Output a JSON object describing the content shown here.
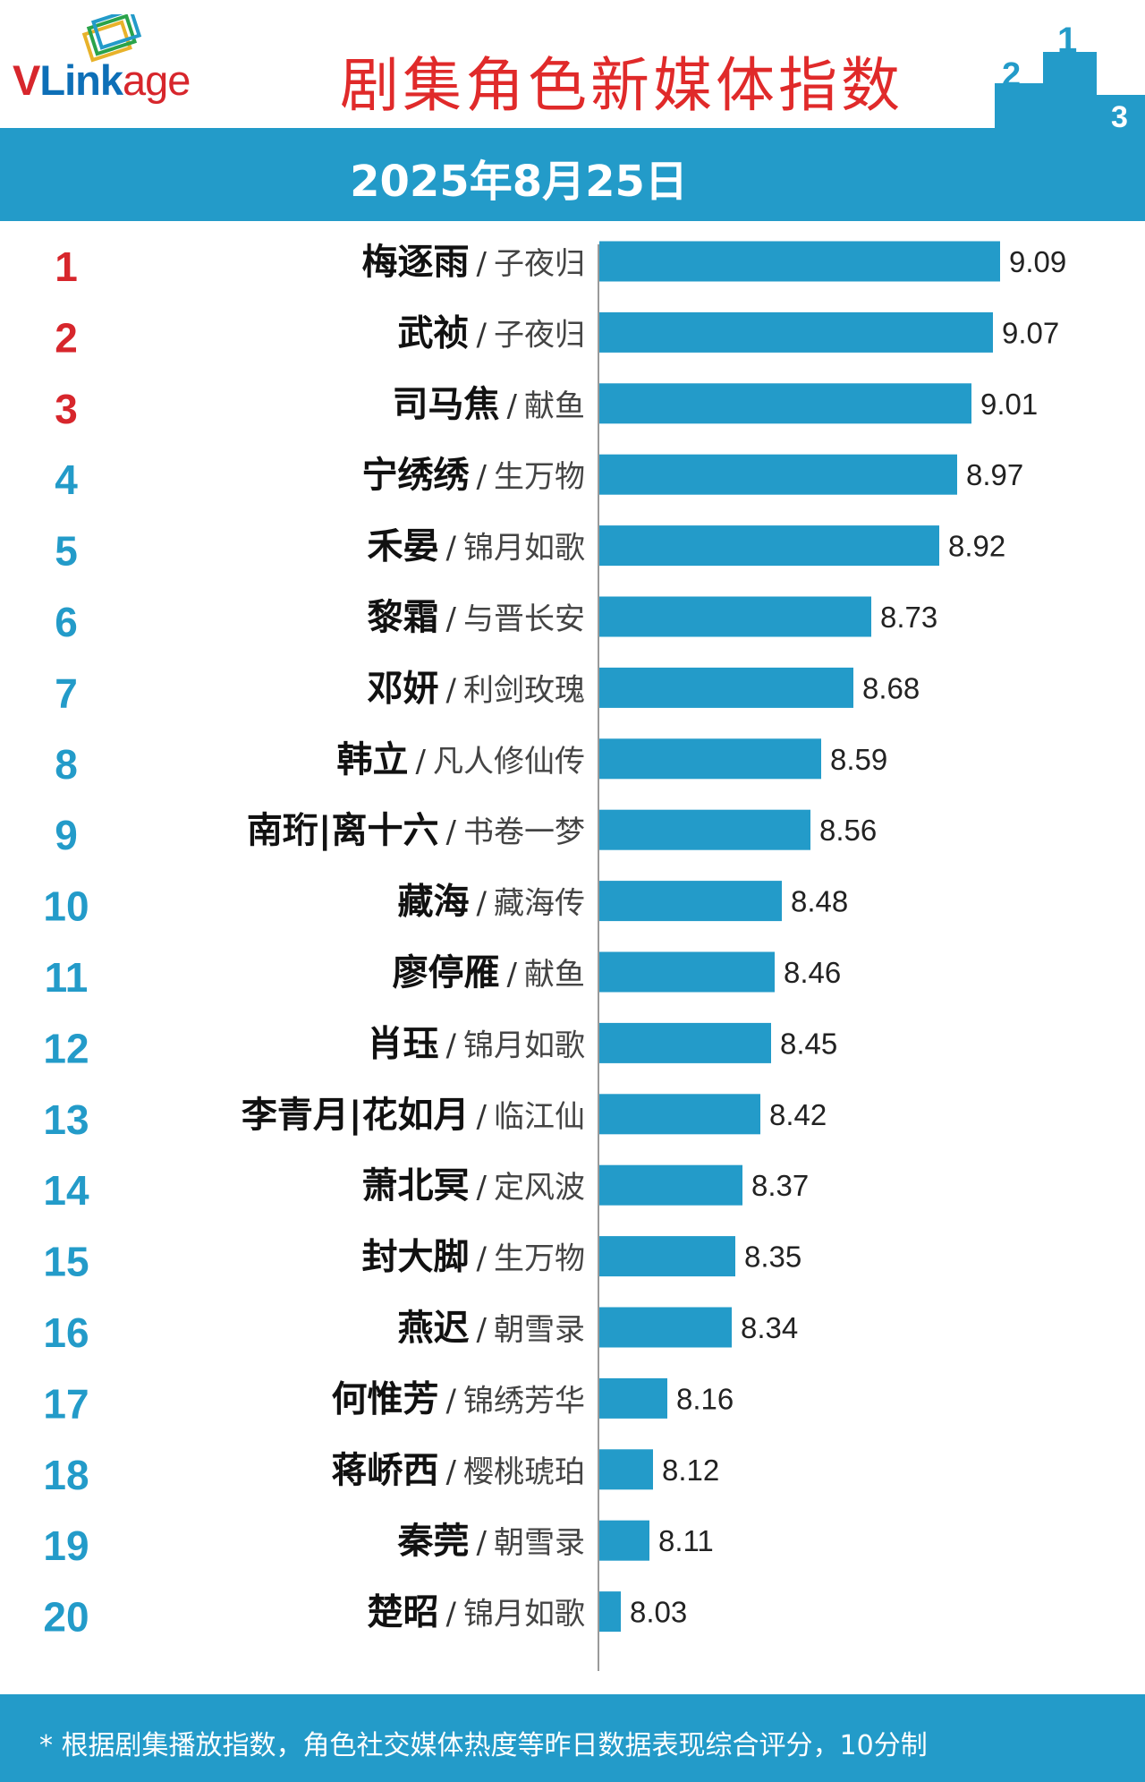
{
  "header": {
    "logo": {
      "v": "V",
      "link": "Link",
      "age": "age"
    },
    "title": "剧集角色新媒体指数",
    "podium_labels": [
      "2",
      "1",
      "3"
    ],
    "date": "2025年8月25日"
  },
  "colors": {
    "bar": "#239bc9",
    "rank_top3": "#d7262c",
    "rank_other": "#239bc9",
    "title": "#e02a2a"
  },
  "chart_data": {
    "type": "bar",
    "orientation": "horizontal",
    "xlim": [
      7.97,
      9.15
    ],
    "rows": [
      {
        "rank": "1",
        "name": "梅逐雨",
        "drama": "子夜归",
        "value": 9.09
      },
      {
        "rank": "2",
        "name": "武祯",
        "drama": "子夜归",
        "value": 9.07
      },
      {
        "rank": "3",
        "name": "司马焦",
        "drama": "献鱼",
        "value": 9.01
      },
      {
        "rank": "4",
        "name": "宁绣绣",
        "drama": "生万物",
        "value": 8.97
      },
      {
        "rank": "5",
        "name": "禾晏",
        "drama": "锦月如歌",
        "value": 8.92
      },
      {
        "rank": "6",
        "name": "黎霜",
        "drama": "与晋长安",
        "value": 8.73
      },
      {
        "rank": "7",
        "name": "邓妍",
        "drama": "利剑玫瑰",
        "value": 8.68
      },
      {
        "rank": "8",
        "name": "韩立",
        "drama": "凡人修仙传",
        "value": 8.59
      },
      {
        "rank": "9",
        "name": "南珩|离十六",
        "drama": "书卷一梦",
        "value": 8.56
      },
      {
        "rank": "10",
        "name": "藏海",
        "drama": "藏海传",
        "value": 8.48
      },
      {
        "rank": "11",
        "name": "廖停雁",
        "drama": "献鱼",
        "value": 8.46
      },
      {
        "rank": "12",
        "name": "肖珏",
        "drama": "锦月如歌",
        "value": 8.45
      },
      {
        "rank": "13",
        "name": "李青月|花如月",
        "drama": "临江仙",
        "value": 8.42
      },
      {
        "rank": "14",
        "name": "萧北冥",
        "drama": "定风波",
        "value": 8.37
      },
      {
        "rank": "15",
        "name": "封大脚",
        "drama": "生万物",
        "value": 8.35
      },
      {
        "rank": "16",
        "name": "燕迟",
        "drama": "朝雪录",
        "value": 8.34
      },
      {
        "rank": "17",
        "name": "何惟芳",
        "drama": "锦绣芳华",
        "value": 8.16
      },
      {
        "rank": "18",
        "name": "蒋峤西",
        "drama": "樱桃琥珀",
        "value": 8.12
      },
      {
        "rank": "19",
        "name": "秦莞",
        "drama": "朝雪录",
        "value": 8.11
      },
      {
        "rank": "20",
        "name": "楚昭",
        "drama": "锦月如歌",
        "value": 8.03
      }
    ]
  },
  "footer": {
    "note": "* 根据剧集播放指数，角色社交媒体热度等昨日数据表现综合评分，10分制"
  }
}
